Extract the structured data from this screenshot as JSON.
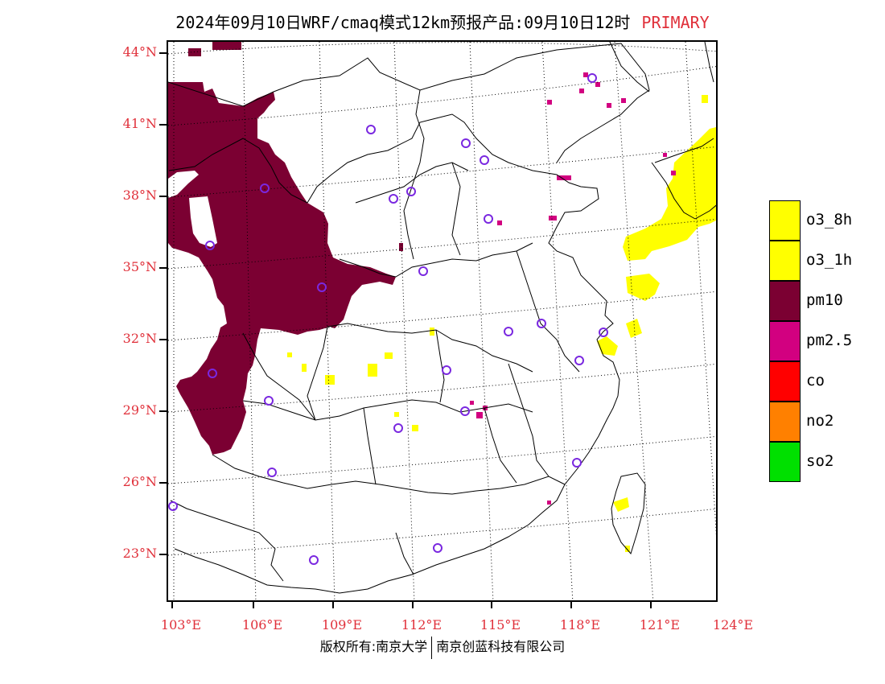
{
  "title": {
    "main": "2024年09月10日WRF/cmaq模式12km预报产品:09月10日12时",
    "tag": "PRIMARY"
  },
  "lat_labels": [
    "44°N",
    "41°N",
    "38°N",
    "35°N",
    "32°N",
    "29°N",
    "26°N",
    "23°N"
  ],
  "lon_labels": [
    "103°E",
    "106°E",
    "109°E",
    "112°E",
    "115°E",
    "118°E",
    "121°E",
    "124°E"
  ],
  "legend": [
    {
      "label": "o3_8h",
      "color": "#ffff00"
    },
    {
      "label": "o3_1h",
      "color": "#ffff00"
    },
    {
      "label": "pm10",
      "color": "#7b0032"
    },
    {
      "label": "pm2.5",
      "color": "#d20080"
    },
    {
      "label": "co",
      "color": "#ff0000"
    },
    {
      "label": "no2",
      "color": "#ff8000"
    },
    {
      "label": "so2",
      "color": "#00e000"
    }
  ],
  "footer": {
    "left": "版权所有:南京大学",
    "right": "南京创蓝科技有限公司"
  },
  "colors": {
    "pm10": "#7b0032",
    "o3": "#ffff00",
    "pm25": "#d20080",
    "label_red": "#e0303a",
    "station": "#7a28e0"
  }
}
